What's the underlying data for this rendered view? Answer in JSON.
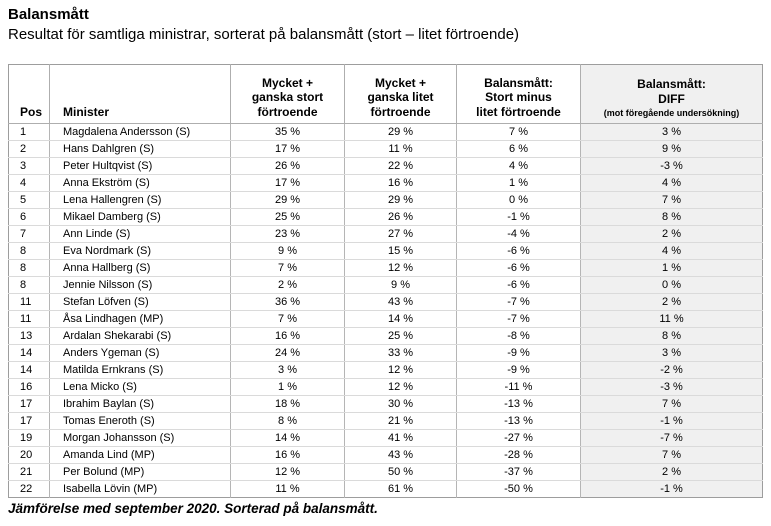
{
  "page": {
    "title": "Balansmått",
    "subtitle": "Resultat för samtliga ministrar, sorterat på balansmått (stort – litet förtroende)",
    "footnote": "Jämförelse med september 2020. Sorterad på balansmått."
  },
  "colors": {
    "diff_column_bg": "#f0f0f0",
    "table_border": "#9d9d9d",
    "row_divider": "#dadada"
  },
  "table": {
    "headers": {
      "pos": "Pos",
      "minister": "Minister",
      "stort": "Mycket +\nganska stort\nförtroende",
      "litet": "Mycket +\nganska litet\nförtroende",
      "balans": "Balansmått:\nStort minus\nlitet förtroende",
      "diff_line1": "Balansmått:",
      "diff_line2": "DIFF",
      "diff_line3": "(mot föregående undersökning)"
    },
    "rows": [
      {
        "pos": "1",
        "minister": "Magdalena Andersson (S)",
        "stort": "35 %",
        "litet": "29 %",
        "balans": "7 %",
        "diff": "3 %"
      },
      {
        "pos": "2",
        "minister": "Hans Dahlgren (S)",
        "stort": "17 %",
        "litet": "11 %",
        "balans": "6 %",
        "diff": "9 %"
      },
      {
        "pos": "3",
        "minister": "Peter Hultqvist (S)",
        "stort": "26 %",
        "litet": "22 %",
        "balans": "4 %",
        "diff": "-3 %"
      },
      {
        "pos": "4",
        "minister": "Anna Ekström (S)",
        "stort": "17 %",
        "litet": "16 %",
        "balans": "1 %",
        "diff": "4 %"
      },
      {
        "pos": "5",
        "minister": "Lena Hallengren (S)",
        "stort": "29 %",
        "litet": "29 %",
        "balans": "0 %",
        "diff": "7 %"
      },
      {
        "pos": "6",
        "minister": "Mikael Damberg (S)",
        "stort": "25 %",
        "litet": "26 %",
        "balans": "-1 %",
        "diff": "8 %"
      },
      {
        "pos": "7",
        "minister": "Ann Linde (S)",
        "stort": "23 %",
        "litet": "27 %",
        "balans": "-4 %",
        "diff": "2 %"
      },
      {
        "pos": "8",
        "minister": "Eva Nordmark (S)",
        "stort": "9 %",
        "litet": "15 %",
        "balans": "-6 %",
        "diff": "4 %"
      },
      {
        "pos": "8",
        "minister": "Anna Hallberg (S)",
        "stort": "7 %",
        "litet": "12 %",
        "balans": "-6 %",
        "diff": "1 %"
      },
      {
        "pos": "8",
        "minister": "Jennie Nilsson (S)",
        "stort": "2 %",
        "litet": "9 %",
        "balans": "-6 %",
        "diff": "0 %"
      },
      {
        "pos": "11",
        "minister": "Stefan Löfven (S)",
        "stort": "36 %",
        "litet": "43 %",
        "balans": "-7 %",
        "diff": "2 %"
      },
      {
        "pos": "11",
        "minister": "Åsa Lindhagen (MP)",
        "stort": "7 %",
        "litet": "14 %",
        "balans": "-7 %",
        "diff": "11 %"
      },
      {
        "pos": "13",
        "minister": "Ardalan Shekarabi (S)",
        "stort": "16 %",
        "litet": "25 %",
        "balans": "-8 %",
        "diff": "8 %"
      },
      {
        "pos": "14",
        "minister": "Anders Ygeman (S)",
        "stort": "24 %",
        "litet": "33 %",
        "balans": "-9 %",
        "diff": "3 %"
      },
      {
        "pos": "14",
        "minister": "Matilda Ernkrans (S)",
        "stort": "3 %",
        "litet": "12 %",
        "balans": "-9 %",
        "diff": "-2 %"
      },
      {
        "pos": "16",
        "minister": "Lena Micko (S)",
        "stort": "1 %",
        "litet": "12 %",
        "balans": "-11 %",
        "diff": "-3 %"
      },
      {
        "pos": "17",
        "minister": "Ibrahim Baylan (S)",
        "stort": "18 %",
        "litet": "30 %",
        "balans": "-13 %",
        "diff": "7 %"
      },
      {
        "pos": "17",
        "minister": "Tomas Eneroth (S)",
        "stort": "8 %",
        "litet": "21 %",
        "balans": "-13 %",
        "diff": "-1 %"
      },
      {
        "pos": "19",
        "minister": "Morgan Johansson (S)",
        "stort": "14 %",
        "litet": "41 %",
        "balans": "-27 %",
        "diff": "-7 %"
      },
      {
        "pos": "20",
        "minister": "Amanda Lind (MP)",
        "stort": "16 %",
        "litet": "43 %",
        "balans": "-28 %",
        "diff": "7 %"
      },
      {
        "pos": "21",
        "minister": "Per Bolund (MP)",
        "stort": "12 %",
        "litet": "50 %",
        "balans": "-37 %",
        "diff": "2 %"
      },
      {
        "pos": "22",
        "minister": "Isabella Lövin (MP)",
        "stort": "11 %",
        "litet": "61 %",
        "balans": "-50 %",
        "diff": "-1 %"
      }
    ]
  }
}
